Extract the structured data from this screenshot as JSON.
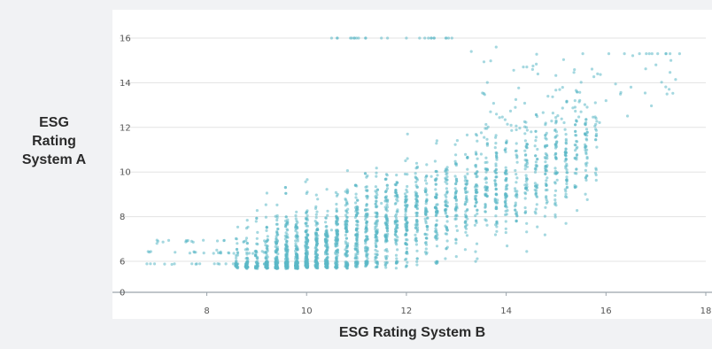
{
  "colors": {
    "background": "#f1f2f4",
    "plot_background": "#ffffff",
    "points": "#5bb8c6",
    "gridlines": "#e3e3e3",
    "axis": "#9aa3ab"
  },
  "chart_data": {
    "type": "scatter",
    "title": "",
    "xlabel": "ESG Rating System B",
    "ylabel": "ESG Rating System A",
    "ylabel_lines": [
      "ESG",
      "Rating",
      "System A"
    ],
    "xlim": [
      6.5,
      18
    ],
    "ylim": [
      0,
      16
    ],
    "x_ticks": [
      8,
      10,
      12,
      14,
      16,
      18
    ],
    "y_tick_labels": [
      "0",
      "6",
      "8",
      "10",
      "12",
      "14",
      "16"
    ],
    "y_axis_break": "labels jump from 0 to 6",
    "grid": "horizontal gridlines",
    "legend": "none",
    "series": [
      {
        "point_count_approx": 6000,
        "trend": "positive",
        "x_range": [
          6.7,
          17.5
        ],
        "y_range": [
          4.5,
          16
        ],
        "density_center": [
          11.5,
          8.5
        ]
      }
    ],
    "samples": {
      "x_low": [
        6.8,
        7.0,
        7.3,
        7.6,
        8.2,
        8.6,
        9.0,
        9.4
      ],
      "y_low": [
        5.5,
        6.8,
        5.4,
        6.9,
        6.5,
        7.0,
        6.4,
        6.8
      ],
      "x_mid": [
        10.0,
        10.5,
        11.0,
        11.5,
        12.0,
        12.5,
        13.0,
        13.5
      ],
      "y_mid": [
        6.8,
        7.4,
        7.8,
        8.6,
        9.2,
        9.8,
        10.3,
        10.8
      ],
      "x_high": [
        14.0,
        14.5,
        15.0,
        15.5,
        16.0,
        16.5,
        17.0,
        17.3
      ],
      "y_high": [
        11.3,
        11.8,
        12.3,
        12.7,
        13.2,
        13.8,
        14.8,
        15.0
      ],
      "x_top_cluster": [
        10.5,
        11.0,
        11.5,
        12.0,
        12.5,
        13.3,
        13.8
      ],
      "y_top_cluster": [
        16.0,
        16.0,
        16.0,
        16.0,
        16.0,
        15.4,
        15.6
      ]
    }
  }
}
